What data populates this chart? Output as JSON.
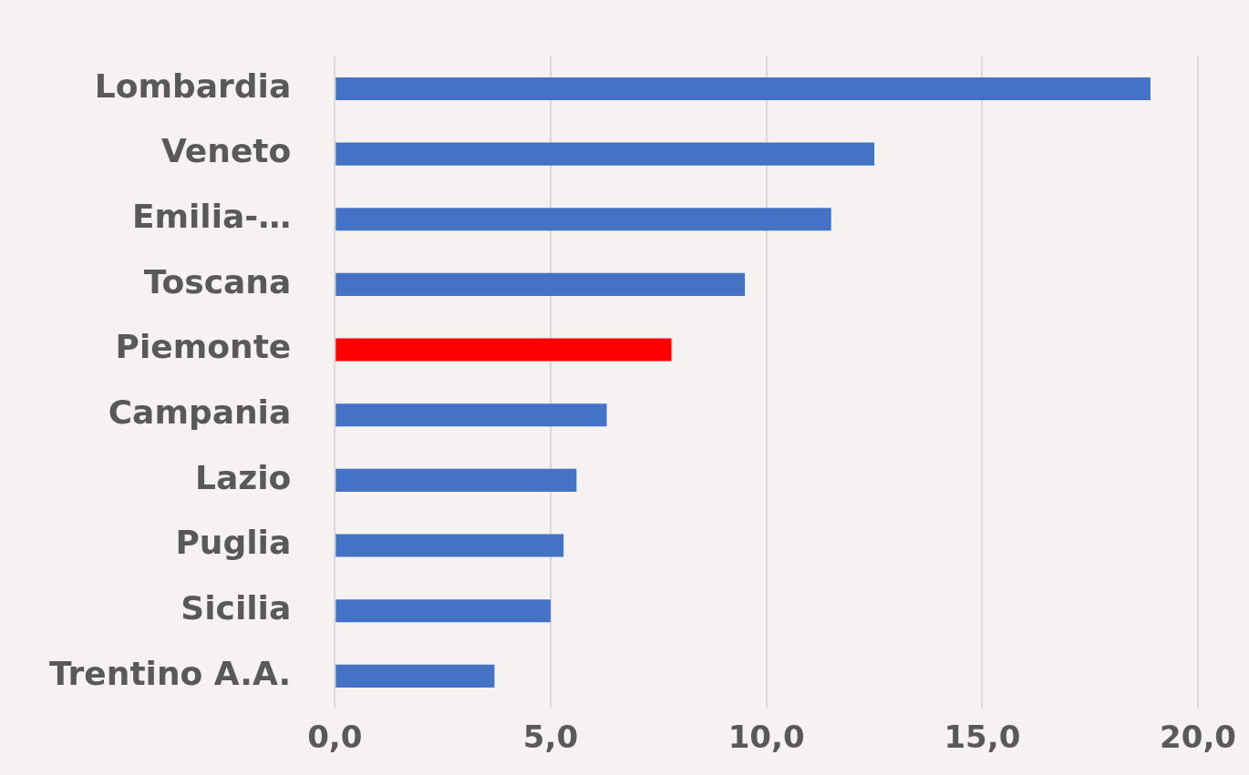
{
  "chart_data": {
    "type": "bar",
    "orientation": "horizontal",
    "categories": [
      "Lombardia",
      "Veneto",
      "Emilia-…",
      "Toscana",
      "Piemonte",
      "Campania",
      "Lazio",
      "Puglia",
      "Sicilia",
      "Trentino A.A."
    ],
    "values": [
      18.9,
      12.5,
      11.5,
      9.5,
      7.8,
      6.3,
      5.6,
      5.3,
      5.0,
      3.7
    ],
    "colors": [
      "#4472c4",
      "#4472c4",
      "#4472c4",
      "#4472c4",
      "#ff0000",
      "#4472c4",
      "#4472c4",
      "#4472c4",
      "#4472c4",
      "#4472c4"
    ],
    "xlim": [
      0,
      20
    ],
    "xticks": [
      {
        "value": 0,
        "label": "0,0"
      },
      {
        "value": 5,
        "label": "5,0"
      },
      {
        "value": 10,
        "label": "10,0"
      },
      {
        "value": 15,
        "label": "15,0"
      },
      {
        "value": 20,
        "label": "20,0"
      }
    ],
    "grid": "x"
  }
}
